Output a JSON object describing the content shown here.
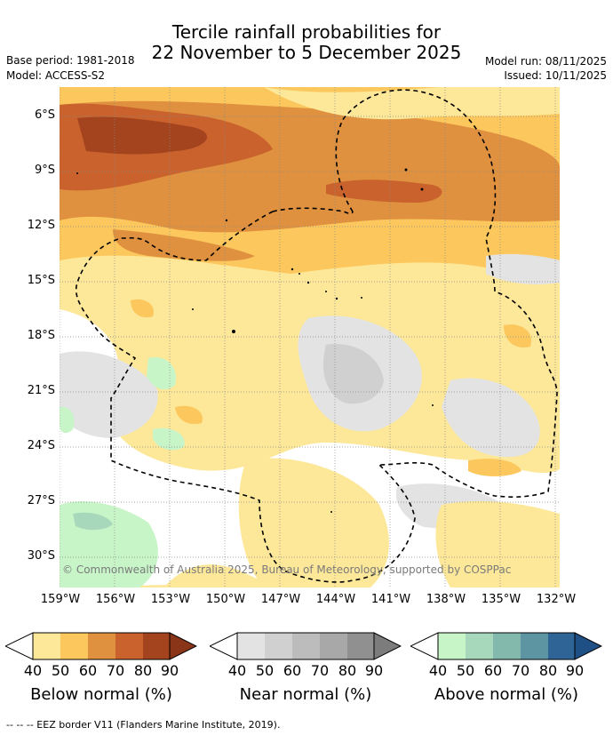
{
  "header": {
    "title_line1": "Tercile rainfall probabilities for",
    "title_line2": "22 November to 5 December 2025",
    "base_period": "Base period: 1981-2018",
    "model": "Model: ACCESS-S2",
    "model_run": "Model run: 08/11/2025",
    "issued": "Issued: 10/11/2025"
  },
  "map": {
    "lat_labels": [
      "6°S",
      "9°S",
      "12°S",
      "15°S",
      "18°S",
      "21°S",
      "24°S",
      "27°S",
      "30°S"
    ],
    "lon_labels": [
      "159°W",
      "156°W",
      "153°W",
      "150°W",
      "147°W",
      "144°W",
      "141°W",
      "138°W",
      "135°W",
      "132°W"
    ],
    "credit": "© Commonwealth of Australia 2025, Bureau of Meteorology, supported by COSPPac"
  },
  "colors": {
    "below": [
      "#fde89a",
      "#fcc85e",
      "#e0913f",
      "#c9622c",
      "#a4441e"
    ],
    "near": [
      "#e3e3e3",
      "#d0d0d0",
      "#bcbcbc",
      "#a8a8a8",
      "#909090"
    ],
    "above": [
      "#c8f5c8",
      "#a7d8bb",
      "#83b9ad",
      "#5d95a3",
      "#2e6596",
      "#1e4f85"
    ]
  },
  "legend": [
    {
      "title": "Below normal (%)",
      "ticks": [
        "40",
        "50",
        "60",
        "70",
        "80",
        "90"
      ]
    },
    {
      "title": "Near normal (%)",
      "ticks": [
        "40",
        "50",
        "60",
        "70",
        "80",
        "90"
      ]
    },
    {
      "title": "Above normal (%)",
      "ticks": [
        "40",
        "50",
        "60",
        "70",
        "80",
        "90"
      ]
    }
  ],
  "footer": "--  --  -- EEZ border V11 (Flanders Marine Institute, 2019)."
}
